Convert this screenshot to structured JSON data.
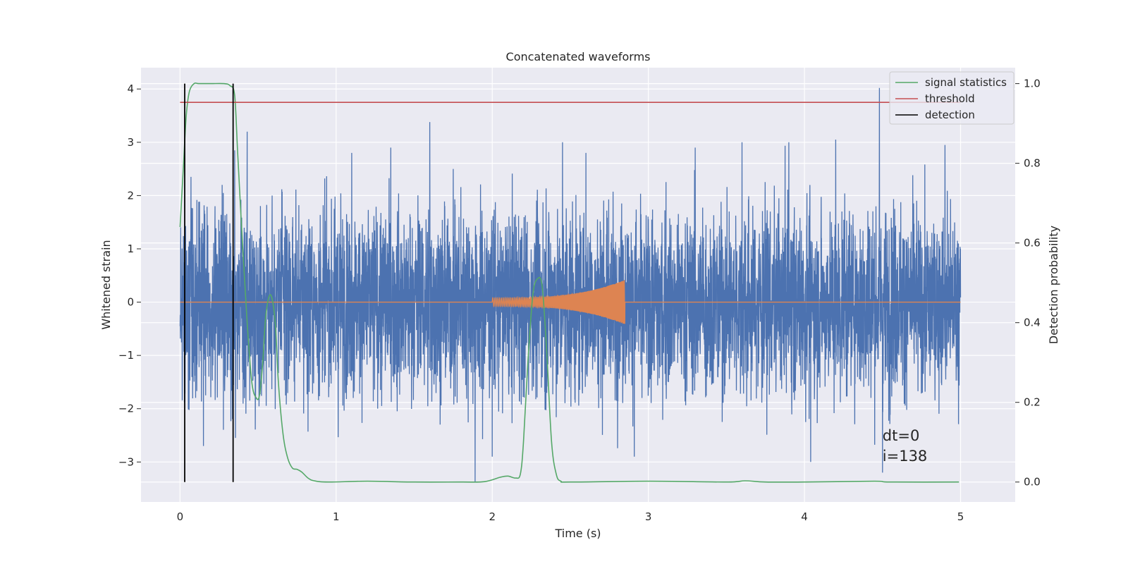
{
  "chart_data": {
    "type": "line",
    "title": "Concatenated waveforms",
    "xlabel": "Time (s)",
    "ylabel": "Whitened strain",
    "y2label": "Detection probability",
    "xlim": [
      -0.25,
      5.35
    ],
    "ylim": [
      -3.75,
      4.4
    ],
    "y2lim": [
      -0.05,
      1.04
    ],
    "xticks": [
      0,
      1,
      2,
      3,
      4,
      5
    ],
    "yticks": [
      -3,
      -2,
      -1,
      0,
      1,
      2,
      3,
      4
    ],
    "y2ticks": [
      0.0,
      0.2,
      0.4,
      0.6,
      0.8,
      1.0
    ],
    "grid": true,
    "legend_position": "top-right",
    "legend": [
      "signal statistics",
      "threshold",
      "detection"
    ],
    "series": [
      {
        "name": "",
        "kind": "noise",
        "axis": "left",
        "color": "#4c72b0",
        "x_range": [
          0,
          5
        ],
        "typical_amplitude": 1.1,
        "peaks": [
          {
            "x": 0.07,
            "y": 2.35
          },
          {
            "x": 0.15,
            "y": -2.7
          },
          {
            "x": 0.27,
            "y": 2.2
          },
          {
            "x": 0.35,
            "y": 2.85
          },
          {
            "x": 0.43,
            "y": 3.2
          },
          {
            "x": 0.59,
            "y": -3.38
          },
          {
            "x": 0.59,
            "y": 2.0
          },
          {
            "x": 1.1,
            "y": 2.8
          },
          {
            "x": 1.35,
            "y": 2.9
          },
          {
            "x": 1.6,
            "y": 3.38
          },
          {
            "x": 1.75,
            "y": 2.5
          },
          {
            "x": 1.89,
            "y": -3.38
          },
          {
            "x": 2.0,
            "y": -2.9
          },
          {
            "x": 2.45,
            "y": 3.0
          },
          {
            "x": 2.6,
            "y": 2.8
          },
          {
            "x": 2.91,
            "y": -2.9
          },
          {
            "x": 3.3,
            "y": 2.9
          },
          {
            "x": 3.6,
            "y": 3.0
          },
          {
            "x": 3.9,
            "y": 3.0
          },
          {
            "x": 4.04,
            "y": -3.0
          },
          {
            "x": 4.2,
            "y": 3.05
          },
          {
            "x": 4.48,
            "y": 4.02
          },
          {
            "x": 4.5,
            "y": -3.2
          },
          {
            "x": 4.9,
            "y": 2.95
          }
        ]
      },
      {
        "name": "",
        "kind": "chirp",
        "axis": "left",
        "color": "#dd8452",
        "baseline": 0,
        "x_range": [
          0,
          5
        ],
        "chirp_start": 2.0,
        "chirp_end": 2.85,
        "amplitude_start": 0.08,
        "amplitude_end": 0.42
      },
      {
        "name": "signal statistics",
        "axis": "right",
        "color": "#55a868",
        "x": [
          0.0,
          0.02,
          0.04,
          0.06,
          0.09,
          0.12,
          0.2,
          0.28,
          0.32,
          0.35,
          0.37,
          0.4,
          0.43,
          0.46,
          0.49,
          0.51,
          0.53,
          0.55,
          0.58,
          0.61,
          0.63,
          0.66,
          0.69,
          0.72,
          0.75,
          0.78,
          0.82,
          0.86,
          0.95,
          1.2,
          1.5,
          1.8,
          1.95,
          2.05,
          2.1,
          2.15,
          2.18,
          2.2,
          2.23,
          2.26,
          2.29,
          2.32,
          2.35,
          2.38,
          2.41,
          2.44,
          2.5,
          3.0,
          3.5,
          3.62,
          3.75,
          4.0,
          4.45,
          4.55,
          4.99
        ],
        "y": [
          0.64,
          0.78,
          0.92,
          0.98,
          1.0,
          1.0,
          1.0,
          1.0,
          0.995,
          0.97,
          0.82,
          0.6,
          0.4,
          0.25,
          0.21,
          0.22,
          0.3,
          0.42,
          0.47,
          0.4,
          0.25,
          0.12,
          0.06,
          0.035,
          0.032,
          0.025,
          0.01,
          0.003,
          0.0,
          0.002,
          0.0,
          0.0,
          0.001,
          0.012,
          0.015,
          0.01,
          0.02,
          0.1,
          0.31,
          0.47,
          0.51,
          0.49,
          0.32,
          0.1,
          0.02,
          0.002,
          0.0,
          0.002,
          0.0,
          0.003,
          0.0,
          0.0,
          0.002,
          0.0,
          0.0
        ]
      },
      {
        "name": "threshold",
        "axis": "right",
        "color": "#c44e52",
        "x": [
          0,
          5
        ],
        "y": [
          0.953,
          0.953
        ]
      },
      {
        "name": "detection",
        "axis": "right",
        "color": "#000000",
        "kind": "vlines",
        "x": [
          0.03,
          0.34
        ],
        "y_range": [
          0.0,
          1.0
        ]
      }
    ],
    "annotations": [
      "dt=0",
      "i=138"
    ]
  }
}
